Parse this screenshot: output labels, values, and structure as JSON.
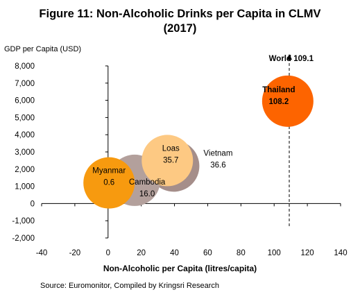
{
  "title_line1": "Figure 11: Non-Alcoholic Drinks per Capita in CLMV",
  "title_line2": "(2017)",
  "source": "Source: Euromonitor, Compiled by Kringsri Research",
  "chart_data": {
    "type": "scatter",
    "subtype": "bubble",
    "xlabel": "Non-Alcoholic per Capita (litres/capita)",
    "ylabel": "GDP per Capita (USD)",
    "xlim": [
      -40,
      140
    ],
    "ylim": [
      -2000,
      8000
    ],
    "x_ticks": [
      "-40",
      "-20",
      "0",
      "20",
      "40",
      "60",
      "80",
      "100",
      "120",
      "140"
    ],
    "y_ticks": [
      "8,000",
      "7,000",
      "6,000",
      "5,000",
      "4,000",
      "3,000",
      "2,000",
      "1,000",
      "0",
      "-1,000",
      "-2,000"
    ],
    "grid": false,
    "points": [
      {
        "name": "Vietnam",
        "value_label": "36.6",
        "x": 36.6,
        "y": 2300,
        "color": "#a58e8a"
      },
      {
        "name": "Cambodia",
        "value_label": "16.0",
        "x": 16.0,
        "y": 1350,
        "color": "#b3a09c"
      },
      {
        "name": "Loas",
        "value_label": "35.7",
        "x": 35.7,
        "y": 2500,
        "color": "#fdc983"
      },
      {
        "name": "Myanmar",
        "value_label": "0.6",
        "x": 0.6,
        "y": 1200,
        "color": "#f79a0f"
      },
      {
        "name": "Thailand",
        "value_label": "108.2",
        "x": 108.2,
        "y": 5950,
        "color": "#fd6400"
      }
    ],
    "reference_line": {
      "label": "World 109.1",
      "x": 109.1,
      "style": "dashed-arrow"
    }
  }
}
